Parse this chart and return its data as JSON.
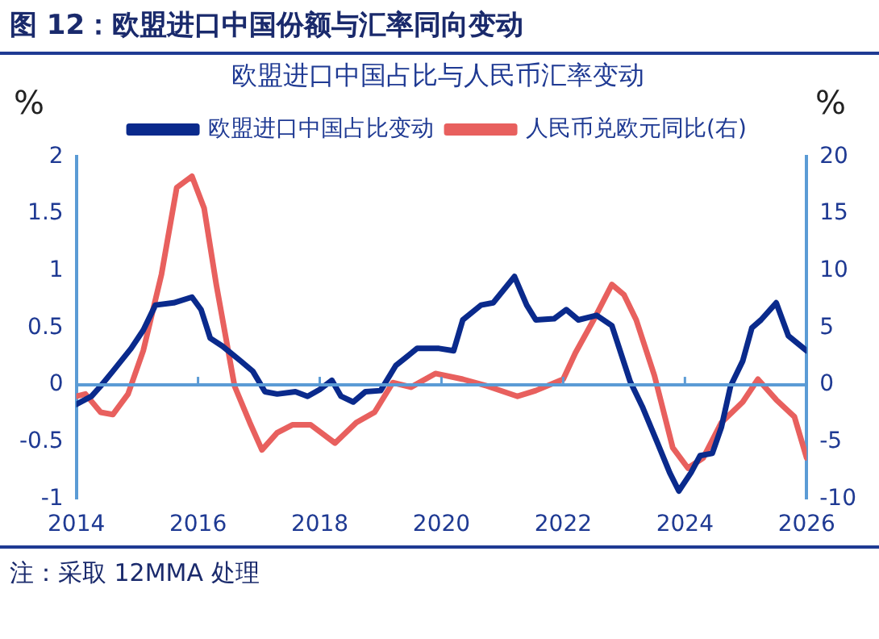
{
  "chart_data": {
    "type": "line",
    "title": "图 12：欧盟进口中国份额与汇率同向变动",
    "subtitle": "欧盟进口中国占比与人民币汇率变动",
    "ylabel": "%",
    "y2label": "%",
    "annotations": [
      "注：采取 12MMA 处理"
    ],
    "xlim": [
      2014,
      2026
    ],
    "xticks": [
      2014,
      2016,
      2018,
      2020,
      2022,
      2024,
      2026
    ],
    "ylim": [
      -1,
      2
    ],
    "yticks": [
      -1,
      -0.5,
      0,
      0.5,
      1,
      1.5,
      2
    ],
    "y2lim": [
      -10,
      20
    ],
    "y2ticks": [
      -10,
      -5,
      0,
      5,
      10,
      15,
      20
    ],
    "ref_lines": [
      {
        "axis": "y",
        "value": 0,
        "color": "#5b9bd5"
      }
    ],
    "grid": false,
    "legend": "top",
    "line_style": "solid",
    "marker": "none",
    "series": [
      {
        "name": "欧盟进口中国占比变动",
        "color": "#0a2a8c",
        "x": [
          2014.0,
          2014.25,
          2014.4,
          2014.6,
          2014.9,
          2015.1,
          2015.3,
          2015.6,
          2015.9,
          2016.05,
          2016.2,
          2016.4,
          2016.7,
          2016.9,
          2017.1,
          2017.3,
          2017.6,
          2017.8,
          2018.0,
          2018.2,
          2018.35,
          2018.55,
          2018.75,
          2019.0,
          2019.25,
          2019.6,
          2019.96,
          2020.2,
          2020.35,
          2020.65,
          2020.85,
          2021.2,
          2021.4,
          2021.55,
          2021.85,
          2022.05,
          2022.25,
          2022.55,
          2022.8,
          2023.1,
          2023.3,
          2023.55,
          2023.75,
          2023.9,
          2024.1,
          2024.25,
          2024.45,
          2024.6,
          2024.75,
          2024.95,
          2025.1,
          2025.25,
          2025.5,
          2025.7,
          2026.0
        ],
        "values": [
          -0.17,
          -0.1,
          -0.01,
          0.12,
          0.32,
          0.48,
          0.7,
          0.72,
          0.77,
          0.66,
          0.41,
          0.34,
          0.21,
          0.12,
          -0.06,
          -0.08,
          -0.06,
          -0.1,
          -0.04,
          0.04,
          -0.1,
          -0.15,
          -0.06,
          -0.05,
          0.17,
          0.32,
          0.32,
          0.3,
          0.57,
          0.7,
          0.72,
          0.95,
          0.7,
          0.57,
          0.58,
          0.66,
          0.57,
          0.61,
          0.52,
          0.03,
          -0.19,
          -0.51,
          -0.77,
          -0.93,
          -0.77,
          -0.62,
          -0.6,
          -0.37,
          -0.01,
          0.21,
          0.5,
          0.57,
          0.72,
          0.43,
          0.3
        ]
      },
      {
        "name": "人民币兑欧元同比(右)",
        "color": "#e8605e",
        "axis": "y2",
        "x": [
          2014.0,
          2014.15,
          2014.4,
          2014.6,
          2014.85,
          2015.1,
          2015.4,
          2015.65,
          2015.9,
          2016.1,
          2016.3,
          2016.6,
          2016.85,
          2017.05,
          2017.3,
          2017.55,
          2017.85,
          2018.25,
          2018.6,
          2018.9,
          2019.2,
          2019.5,
          2019.9,
          2020.35,
          2020.75,
          2021.25,
          2021.55,
          2022.0,
          2022.2,
          2022.5,
          2022.8,
          2023.0,
          2023.2,
          2023.5,
          2023.8,
          2024.05,
          2024.3,
          2024.6,
          2024.95,
          2025.2,
          2025.5,
          2025.8,
          2026.0
        ],
        "values": [
          -1.0,
          -0.8,
          -2.4,
          -2.6,
          -0.8,
          3.0,
          9.7,
          17.3,
          18.3,
          15.5,
          8.8,
          -0.1,
          -3.3,
          -5.7,
          -4.2,
          -3.5,
          -3.5,
          -5.1,
          -3.3,
          -2.4,
          0.2,
          -0.2,
          1.0,
          0.5,
          -0.1,
          -1.0,
          -0.5,
          0.5,
          2.8,
          5.7,
          8.8,
          7.9,
          5.7,
          0.8,
          -5.5,
          -7.3,
          -6.4,
          -3.3,
          -1.5,
          0.5,
          -1.3,
          -2.8,
          -6.4
        ]
      }
    ]
  }
}
